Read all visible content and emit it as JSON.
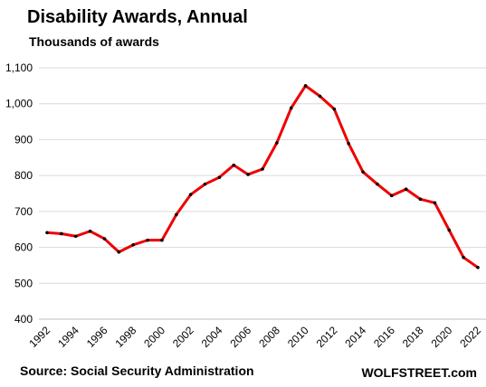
{
  "chart_data": {
    "type": "line",
    "title": "Disability Awards, Annual",
    "subtitle": "Thousands of awards",
    "xlabel": "",
    "ylabel": "",
    "x": [
      1992,
      1993,
      1994,
      1995,
      1996,
      1997,
      1998,
      1999,
      2000,
      2001,
      2002,
      2003,
      2004,
      2005,
      2006,
      2007,
      2008,
      2009,
      2010,
      2011,
      2012,
      2013,
      2014,
      2015,
      2016,
      2017,
      2018,
      2019,
      2020,
      2021,
      2022
    ],
    "series": [
      {
        "values": [
          641,
          638,
          631,
          645,
          624,
          587,
          607,
          620,
          620,
          691,
          747,
          776,
          795,
          829,
          803,
          818,
          891,
          988,
          1050,
          1021,
          985,
          889,
          810,
          776,
          744,
          762,
          734,
          724,
          648,
          572,
          544
        ],
        "color": "#ee0000"
      }
    ],
    "ylim": [
      400,
      1100
    ],
    "y_ticks": [
      "400",
      "500",
      "600",
      "700",
      "800",
      "900",
      "1,000",
      "1,100"
    ],
    "x_ticks": [
      "1992",
      "1994",
      "1996",
      "1998",
      "2000",
      "2002",
      "2004",
      "2006",
      "2008",
      "2010",
      "2012",
      "2014",
      "2016",
      "2018",
      "2020",
      "2022"
    ],
    "grid": "horizontal",
    "legend": "none",
    "colors": {
      "line": "#ee0000",
      "marker": "#000000",
      "grid": "#d9d9d9"
    }
  },
  "footer": {
    "source": "Source: Social Security Administration",
    "brand": "WOLFSTREET.com"
  }
}
